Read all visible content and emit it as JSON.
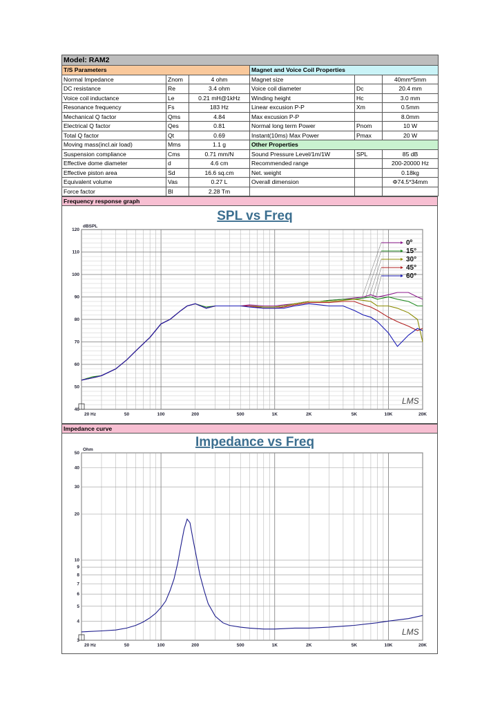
{
  "model": "Model: RAM2",
  "ts_header": "T/S Parameters",
  "mag_header": "Magnet and Voice Coil Properties",
  "other_header": "Other Properties",
  "ts_params": [
    {
      "name": "Normal Impedance",
      "symbol": "Znom",
      "value": "4 ohm"
    },
    {
      "name": "DC resistance",
      "symbol": "Re",
      "value": "3.4 ohm"
    },
    {
      "name": "Voice coil inductance",
      "symbol": "Le",
      "value": "0.21 mH@1kHz"
    },
    {
      "name": "Resonance frequency",
      "symbol": "Fs",
      "value": "183 Hz"
    },
    {
      "name": "Mechanical Q factor",
      "symbol": "Qms",
      "value": "4.84"
    },
    {
      "name": "Electrical Q factor",
      "symbol": "Qes",
      "value": "0.81"
    },
    {
      "name": "Total Q factor",
      "symbol": "Qt",
      "value": "0.69"
    },
    {
      "name": "Moving mass(incl.air load)",
      "symbol": "Mms",
      "value": "1.1 g"
    },
    {
      "name": "Suspension compliance",
      "symbol": "Cms",
      "value": "0.71 mm/N"
    },
    {
      "name": "Effective dome diameter",
      "symbol": "d",
      "value": "4.6 cm"
    },
    {
      "name": "Effective piston area",
      "symbol": "Sd",
      "value": "16.6 sq.cm"
    },
    {
      "name": "Equivalent volume",
      "symbol": "Vas",
      "value": "0.27 L"
    },
    {
      "name": "Force factor",
      "symbol": "Bl",
      "value": "2.28 Tm"
    }
  ],
  "mag_props": [
    {
      "name": "Magnet size",
      "symbol": "",
      "value": "40mm*5mm"
    },
    {
      "name": "Voice coil diameter",
      "symbol": "Dc",
      "value": "20.4 mm"
    },
    {
      "name": "Winding height",
      "symbol": "Hc",
      "value": "3.0 mm"
    },
    {
      "name": "Linear excusion P-P",
      "symbol": "Xm",
      "value": "0.5mm"
    },
    {
      "name": "Max excusion P-P",
      "symbol": "",
      "value": "8.0mm"
    },
    {
      "name": "Normal long term Power",
      "symbol": "Pnom",
      "value": "10 W"
    },
    {
      "name": "Instant(10ms) Max Power",
      "symbol": "Pmax",
      "value": "20 W"
    }
  ],
  "other_props": [
    {
      "name": "Sound Pressure Level/1m/1W",
      "symbol": "SPL",
      "value": "85 dB"
    },
    {
      "name": "Recommended range",
      "symbol": "",
      "value": "200-20000 Hz"
    },
    {
      "name": "Net. weight",
      "symbol": "",
      "value": "0.18kg"
    },
    {
      "name": "Overall dimension",
      "symbol": "",
      "value": "Φ74.5*34mm"
    }
  ],
  "freq_section": "Frequency response graph",
  "imp_section": "Impedance curve",
  "watermark": "LMS",
  "chart_data": [
    {
      "type": "line",
      "title": "SPL vs Freq",
      "ylabel": "dBSPL",
      "x_scale": "log",
      "xlim": [
        20,
        20000
      ],
      "ylim": [
        40,
        120
      ],
      "y_ticks": [
        40,
        50,
        60,
        70,
        80,
        90,
        100,
        110,
        120
      ],
      "x_tick_labels": [
        "20 Hz",
        "50",
        "100",
        "200",
        "500",
        "1K",
        "2K",
        "5K",
        "10K",
        "20K"
      ],
      "x_tick_values": [
        20,
        50,
        100,
        200,
        500,
        1000,
        2000,
        5000,
        10000,
        20000
      ],
      "grid": true,
      "legend_position": "top-right",
      "series": [
        {
          "name": "0º",
          "color": "#8b1a8b",
          "x": [
            20,
            25,
            30,
            40,
            50,
            60,
            80,
            100,
            120,
            150,
            170,
            200,
            250,
            300,
            400,
            500,
            600,
            800,
            1000,
            1200,
            1500,
            2000,
            2500,
            3000,
            4000,
            5000,
            6000,
            7000,
            8000,
            10000,
            12000,
            15000,
            18000,
            20000
          ],
          "y": [
            53,
            54,
            55,
            58,
            62,
            66,
            72,
            78,
            80,
            84,
            86,
            87,
            85,
            86,
            86,
            86,
            86.5,
            86,
            86,
            86.5,
            87,
            88,
            88,
            88.5,
            89,
            89.5,
            90,
            91,
            90,
            91,
            92,
            92,
            90,
            89
          ]
        },
        {
          "name": "15°",
          "color": "#1f8a1f",
          "x": [
            20,
            25,
            30,
            40,
            50,
            60,
            80,
            100,
            120,
            150,
            170,
            200,
            250,
            300,
            400,
            500,
            600,
            800,
            1000,
            1200,
            1500,
            2000,
            2500,
            3000,
            4000,
            5000,
            6000,
            7000,
            8000,
            10000,
            12000,
            15000,
            18000,
            20000
          ],
          "y": [
            53,
            54.5,
            55,
            58,
            62,
            66,
            72,
            78,
            80,
            84,
            86,
            87,
            85.5,
            86,
            86,
            86,
            86,
            85.5,
            85.5,
            86,
            87,
            88,
            88,
            88.5,
            89,
            89,
            89.5,
            90,
            89,
            90,
            89,
            88,
            86,
            86
          ]
        },
        {
          "name": "30°",
          "color": "#8b8b00",
          "x": [
            20,
            25,
            30,
            40,
            50,
            60,
            80,
            100,
            120,
            150,
            170,
            200,
            250,
            300,
            400,
            500,
            600,
            800,
            1000,
            1200,
            1500,
            2000,
            2500,
            3000,
            4000,
            5000,
            6000,
            7000,
            8000,
            10000,
            12000,
            15000,
            18000,
            20000
          ],
          "y": [
            53,
            54,
            55,
            58,
            62,
            66,
            72,
            78,
            80,
            84,
            86,
            87,
            85,
            86,
            86,
            86,
            86,
            85.5,
            85.5,
            86,
            87,
            88,
            88,
            88,
            88.5,
            89,
            88.5,
            88,
            86,
            86,
            85,
            83,
            80,
            70
          ]
        },
        {
          "name": "45°",
          "color": "#b22222",
          "x": [
            20,
            25,
            30,
            40,
            50,
            60,
            80,
            100,
            120,
            150,
            170,
            200,
            250,
            300,
            400,
            500,
            600,
            800,
            1000,
            1200,
            1500,
            2000,
            2500,
            3000,
            4000,
            5000,
            6000,
            7000,
            8000,
            10000,
            12000,
            15000,
            18000,
            20000
          ],
          "y": [
            53,
            54,
            55,
            58,
            62,
            66,
            72,
            78,
            80,
            84,
            86,
            87,
            85,
            86,
            86,
            86,
            86,
            85,
            85,
            85.5,
            86.5,
            87.5,
            87.5,
            87.5,
            88,
            88,
            86.5,
            85.5,
            84,
            81,
            79,
            77,
            75,
            76
          ]
        },
        {
          "name": "60°",
          "color": "#1a1ab5",
          "x": [
            20,
            25,
            30,
            40,
            50,
            60,
            80,
            100,
            120,
            150,
            170,
            200,
            250,
            300,
            400,
            500,
            600,
            800,
            1000,
            1200,
            1500,
            2000,
            2500,
            3000,
            4000,
            5000,
            6000,
            7000,
            8000,
            10000,
            12000,
            15000,
            18000,
            20000
          ],
          "y": [
            53,
            54,
            55,
            58,
            62,
            66,
            72,
            78,
            80,
            84,
            86,
            87,
            85,
            86,
            86,
            86,
            85.5,
            85,
            85,
            85,
            86,
            87,
            86.5,
            86,
            86,
            84,
            82,
            81,
            79,
            74,
            68,
            73,
            76,
            75
          ]
        }
      ]
    },
    {
      "type": "line",
      "title": "Impedance vs Freq",
      "ylabel": "Ohm",
      "x_scale": "log",
      "y_scale": "log",
      "xlim": [
        20,
        20000
      ],
      "ylim": [
        3,
        50
      ],
      "y_ticks": [
        3,
        4,
        5,
        6,
        7,
        8,
        9,
        10,
        20,
        30,
        40,
        50
      ],
      "x_tick_labels": [
        "20 Hz",
        "50",
        "100",
        "200",
        "500",
        "1K",
        "2K",
        "5K",
        "10K",
        "20K"
      ],
      "x_tick_values": [
        20,
        50,
        100,
        200,
        500,
        1000,
        2000,
        5000,
        10000,
        20000
      ],
      "grid": true,
      "series": [
        {
          "name": "",
          "color": "#1a1a8b",
          "x": [
            20,
            30,
            40,
            50,
            60,
            70,
            80,
            90,
            100,
            110,
            120,
            130,
            140,
            150,
            160,
            170,
            180,
            190,
            200,
            220,
            240,
            260,
            300,
            350,
            400,
            500,
            600,
            800,
            1000,
            1500,
            2000,
            3000,
            5000,
            8000,
            10000,
            15000,
            20000
          ],
          "y": [
            3.4,
            3.45,
            3.5,
            3.6,
            3.75,
            3.95,
            4.2,
            4.5,
            4.9,
            5.4,
            6.3,
            7.5,
            9.5,
            12.5,
            16,
            18.5,
            17.5,
            14,
            11.5,
            8,
            6.3,
            5.2,
            4.3,
            3.9,
            3.75,
            3.65,
            3.6,
            3.55,
            3.55,
            3.6,
            3.6,
            3.65,
            3.75,
            3.9,
            4.0,
            4.15,
            4.35
          ]
        }
      ]
    }
  ]
}
